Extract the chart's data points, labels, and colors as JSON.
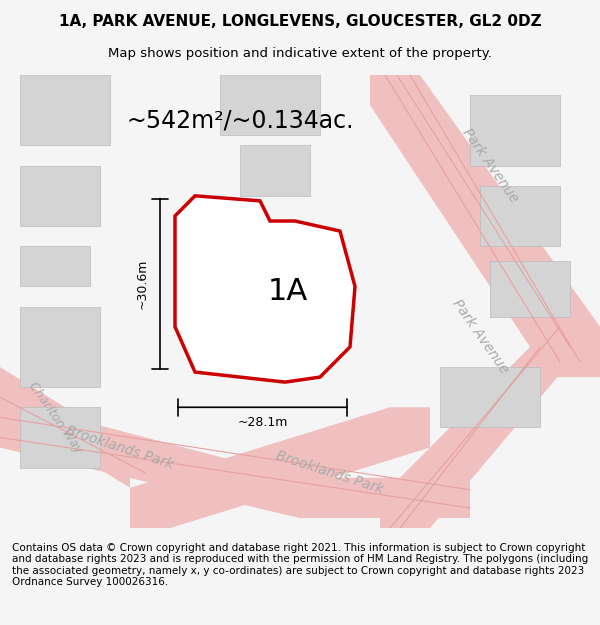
{
  "title_line1": "1A, PARK AVENUE, LONGLEVENS, GLOUCESTER, GL2 0DZ",
  "title_line2": "Map shows position and indicative extent of the property.",
  "area_label": "~542m²/~0.134ac.",
  "property_label": "1A",
  "dim_vertical": "~30.6m",
  "dim_horizontal": "~28.1m",
  "footer_text": "Contains OS data © Crown copyright and database right 2021. This information is subject to Crown copyright and database rights 2023 and is reproduced with the permission of HM Land Registry. The polygons (including the associated geometry, namely x, y co-ordinates) are subject to Crown copyright and database rights 2023 Ordnance Survey 100026316.",
  "bg_color": "#f5f5f5",
  "map_bg": "#ffffff",
  "road_color_light": "#f5c0c0",
  "road_color_dark": "#e8a0a0",
  "block_color": "#d8d8d8",
  "block_color2": "#e8e8e8",
  "property_fill": "#ffffff",
  "property_edge": "#dd0000",
  "dim_line_color": "#333333",
  "street_label_color": "#aaaaaa",
  "title_fontsize": 11,
  "subtitle_fontsize": 9.5,
  "area_fontsize": 18,
  "property_label_fontsize": 20,
  "dim_fontsize": 9,
  "street_fontsize": 11,
  "footer_fontsize": 7.5
}
